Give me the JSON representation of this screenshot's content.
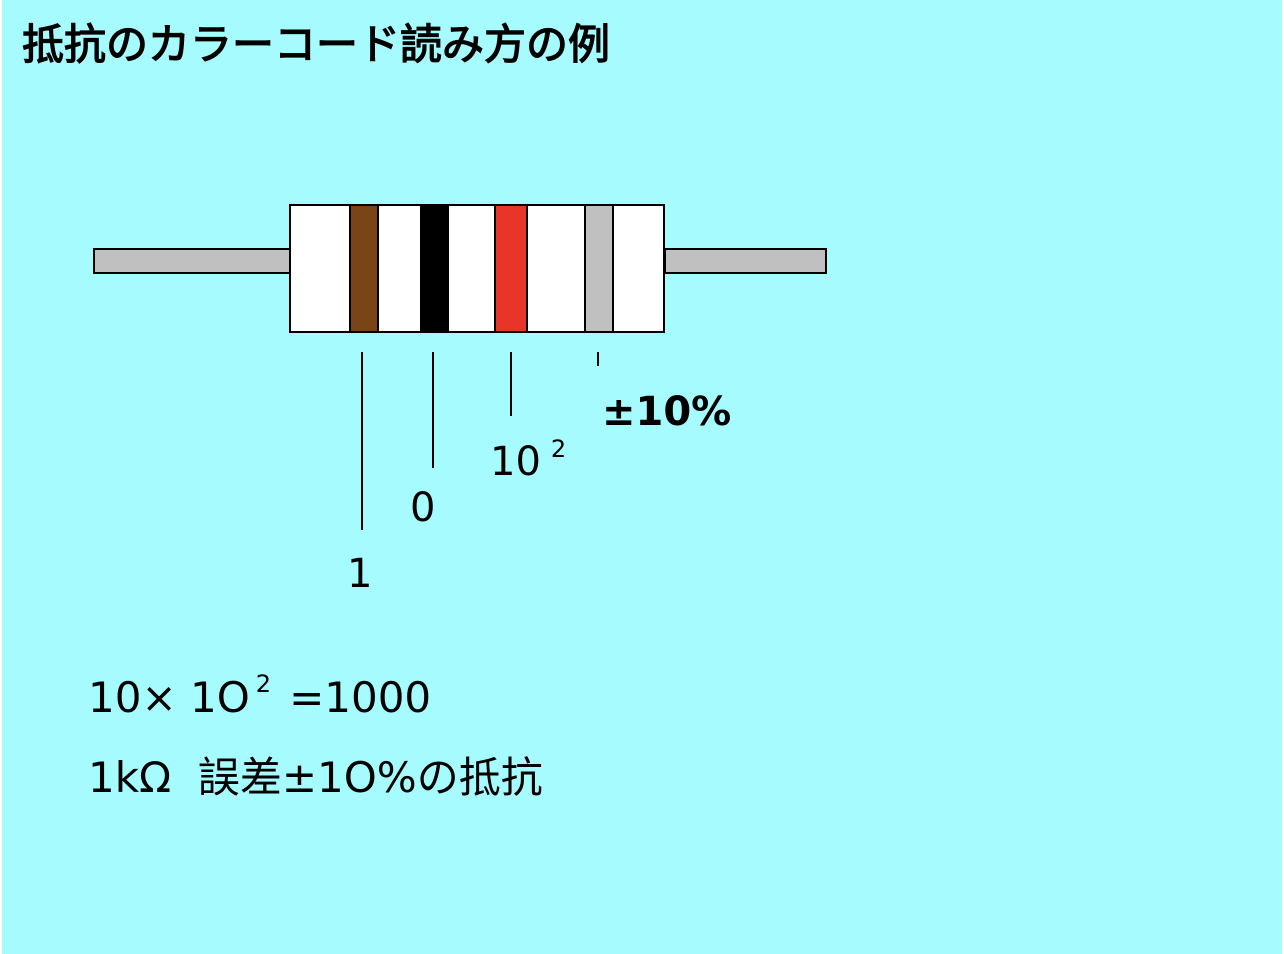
{
  "title": "抵抗のカラーコード読み方の例",
  "colors": {
    "background": "#a5fbfd",
    "lead": "#c0c0c0",
    "resistor_body": "#ffffff"
  },
  "bands": [
    {
      "name": "brown",
      "color": "#7a4419"
    },
    {
      "name": "black",
      "color": "#000000"
    },
    {
      "name": "red",
      "color": "#e8352a"
    },
    {
      "name": "gray",
      "color": "#c0c0c0"
    }
  ],
  "labels": {
    "band1": "1",
    "band2": "0",
    "multiplier_base": "10",
    "multiplier_exp": "2",
    "tolerance": "±10%"
  },
  "formula": {
    "lhs": "10×",
    "base": "1O",
    "exp": "2",
    "rhs": "=1000"
  },
  "result": "1kΩ  誤差±1O%の抵抗"
}
